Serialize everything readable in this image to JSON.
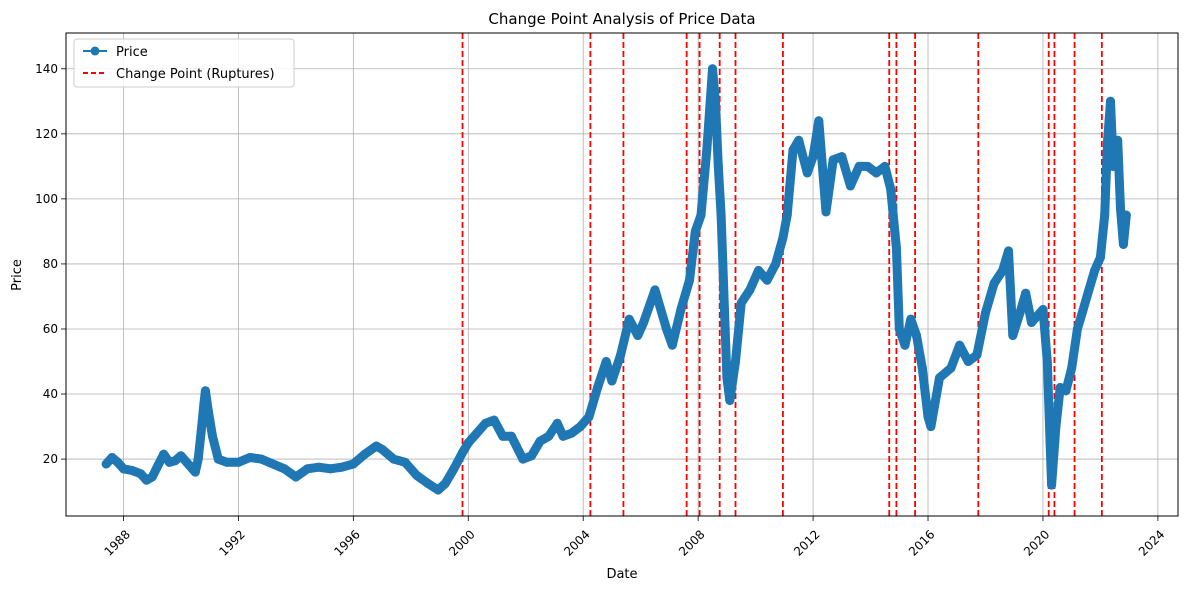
{
  "chart_data": {
    "type": "line",
    "title": "Change Point Analysis of Price Data",
    "xlabel": "Date",
    "ylabel": "Price",
    "x_range": [
      1986.0,
      2024.7
    ],
    "ylim": [
      2.5,
      151
    ],
    "x_ticks": [
      "1988",
      "1992",
      "1996",
      "2000",
      "2004",
      "2008",
      "2012",
      "2016",
      "2020",
      "2024"
    ],
    "y_ticks": [
      20,
      40,
      60,
      80,
      100,
      120,
      140
    ],
    "grid": true,
    "legend_position": "top-left",
    "series": [
      {
        "name": "Price",
        "color": "#1f77b4",
        "marker": "circle",
        "points": [
          [
            1987.4,
            18.5
          ],
          [
            1987.6,
            20.5
          ],
          [
            1987.8,
            19.0
          ],
          [
            1988.0,
            17.0
          ],
          [
            1988.3,
            16.5
          ],
          [
            1988.6,
            15.5
          ],
          [
            1988.8,
            13.5
          ],
          [
            1989.0,
            14.5
          ],
          [
            1989.2,
            18.0
          ],
          [
            1989.4,
            21.5
          ],
          [
            1989.6,
            19.0
          ],
          [
            1989.8,
            19.5
          ],
          [
            1990.0,
            21.0
          ],
          [
            1990.3,
            18.0
          ],
          [
            1990.5,
            16.0
          ],
          [
            1990.6,
            20.0
          ],
          [
            1990.7,
            28.0
          ],
          [
            1990.8,
            37.0
          ],
          [
            1990.85,
            41.0
          ],
          [
            1990.95,
            35.0
          ],
          [
            1991.1,
            27.0
          ],
          [
            1991.3,
            20.0
          ],
          [
            1991.6,
            19.0
          ],
          [
            1992.0,
            19.0
          ],
          [
            1992.4,
            20.5
          ],
          [
            1992.8,
            20.0
          ],
          [
            1993.2,
            18.5
          ],
          [
            1993.6,
            17.0
          ],
          [
            1994.0,
            14.5
          ],
          [
            1994.4,
            17.0
          ],
          [
            1994.8,
            17.5
          ],
          [
            1995.2,
            17.0
          ],
          [
            1995.6,
            17.5
          ],
          [
            1996.0,
            18.5
          ],
          [
            1996.4,
            21.5
          ],
          [
            1996.8,
            24.0
          ],
          [
            1997.0,
            23.0
          ],
          [
            1997.4,
            20.0
          ],
          [
            1997.8,
            19.0
          ],
          [
            1998.2,
            15.0
          ],
          [
            1998.6,
            12.5
          ],
          [
            1998.95,
            10.5
          ],
          [
            1999.2,
            12.5
          ],
          [
            1999.5,
            17.0
          ],
          [
            1999.8,
            22.0
          ],
          [
            2000.0,
            25.0
          ],
          [
            2000.3,
            28.0
          ],
          [
            2000.6,
            31.0
          ],
          [
            2000.9,
            32.0
          ],
          [
            2001.2,
            27.0
          ],
          [
            2001.5,
            27.0
          ],
          [
            2001.9,
            20.0
          ],
          [
            2002.2,
            21.0
          ],
          [
            2002.5,
            25.5
          ],
          [
            2002.8,
            27.0
          ],
          [
            2003.1,
            31.0
          ],
          [
            2003.3,
            27.0
          ],
          [
            2003.6,
            28.0
          ],
          [
            2003.9,
            30.0
          ],
          [
            2004.2,
            33.0
          ],
          [
            2004.5,
            42.0
          ],
          [
            2004.8,
            50.0
          ],
          [
            2005.0,
            44.0
          ],
          [
            2005.3,
            52.0
          ],
          [
            2005.6,
            63.0
          ],
          [
            2005.9,
            58.0
          ],
          [
            2006.1,
            62.0
          ],
          [
            2006.5,
            72.0
          ],
          [
            2006.9,
            60.0
          ],
          [
            2007.1,
            55.0
          ],
          [
            2007.4,
            66.0
          ],
          [
            2007.7,
            75.0
          ],
          [
            2007.9,
            90.0
          ],
          [
            2008.1,
            95.0
          ],
          [
            2008.3,
            115.0
          ],
          [
            2008.5,
            140.0
          ],
          [
            2008.6,
            130.0
          ],
          [
            2008.7,
            110.0
          ],
          [
            2008.8,
            95.0
          ],
          [
            2008.9,
            70.0
          ],
          [
            2009.0,
            45.0
          ],
          [
            2009.1,
            38.0
          ],
          [
            2009.3,
            50.0
          ],
          [
            2009.5,
            68.0
          ],
          [
            2009.8,
            72.0
          ],
          [
            2010.1,
            78.0
          ],
          [
            2010.4,
            75.0
          ],
          [
            2010.7,
            80.0
          ],
          [
            2010.95,
            88.0
          ],
          [
            2011.1,
            95.0
          ],
          [
            2011.3,
            115.0
          ],
          [
            2011.5,
            118.0
          ],
          [
            2011.8,
            108.0
          ],
          [
            2012.0,
            113.0
          ],
          [
            2012.2,
            124.0
          ],
          [
            2012.45,
            96.0
          ],
          [
            2012.7,
            112.0
          ],
          [
            2013.0,
            113.0
          ],
          [
            2013.3,
            104.0
          ],
          [
            2013.6,
            110.0
          ],
          [
            2013.9,
            110.0
          ],
          [
            2014.2,
            108.0
          ],
          [
            2014.5,
            110.0
          ],
          [
            2014.7,
            103.0
          ],
          [
            2014.9,
            85.0
          ],
          [
            2015.0,
            60.0
          ],
          [
            2015.2,
            55.0
          ],
          [
            2015.4,
            63.0
          ],
          [
            2015.6,
            58.0
          ],
          [
            2015.8,
            48.0
          ],
          [
            2016.0,
            33.0
          ],
          [
            2016.1,
            30.0
          ],
          [
            2016.4,
            45.0
          ],
          [
            2016.8,
            48.0
          ],
          [
            2017.1,
            55.0
          ],
          [
            2017.4,
            50.0
          ],
          [
            2017.7,
            52.0
          ],
          [
            2018.0,
            65.0
          ],
          [
            2018.3,
            74.0
          ],
          [
            2018.6,
            78.0
          ],
          [
            2018.8,
            84.0
          ],
          [
            2018.95,
            58.0
          ],
          [
            2019.2,
            65.0
          ],
          [
            2019.4,
            71.0
          ],
          [
            2019.6,
            62.0
          ],
          [
            2019.8,
            64.0
          ],
          [
            2020.0,
            66.0
          ],
          [
            2020.15,
            50.0
          ],
          [
            2020.25,
            25.0
          ],
          [
            2020.3,
            12.0
          ],
          [
            2020.45,
            30.0
          ],
          [
            2020.6,
            42.0
          ],
          [
            2020.8,
            41.0
          ],
          [
            2021.0,
            48.0
          ],
          [
            2021.2,
            60.0
          ],
          [
            2021.4,
            66.0
          ],
          [
            2021.6,
            72.0
          ],
          [
            2021.8,
            78.0
          ],
          [
            2022.0,
            82.0
          ],
          [
            2022.15,
            95.0
          ],
          [
            2022.25,
            118.0
          ],
          [
            2022.35,
            130.0
          ],
          [
            2022.45,
            110.0
          ],
          [
            2022.6,
            118.0
          ],
          [
            2022.7,
            97.0
          ],
          [
            2022.8,
            86.0
          ],
          [
            2022.9,
            95.0
          ]
        ]
      },
      {
        "name": "Change Point (Ruptures)",
        "color": "#ff0000",
        "line_style": "dashed",
        "x_values": [
          1999.8,
          2004.25,
          2005.4,
          2007.6,
          2008.05,
          2008.75,
          2009.3,
          2010.95,
          2014.65,
          2014.9,
          2015.55,
          2017.75,
          2020.2,
          2020.4,
          2021.1,
          2022.05
        ]
      }
    ]
  }
}
